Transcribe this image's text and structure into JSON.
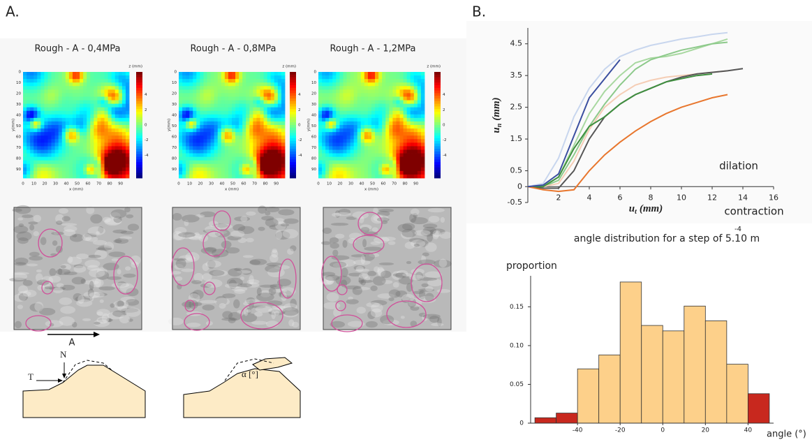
{
  "panel_labels": [
    "A.",
    "B."
  ],
  "heatmaps": {
    "titles": [
      "Rough - A - 0,4MPa",
      "Rough - A - 0,8MPa",
      "Rough - A - 1,2MPa"
    ],
    "xlabel": "x (mm)",
    "ylabel": "y(mm)",
    "zlabel": "z (mm)",
    "xticks": [
      0,
      10,
      20,
      30,
      40,
      50,
      60,
      70,
      80,
      90
    ],
    "yticks": [
      0,
      10,
      20,
      30,
      40,
      50,
      60,
      70,
      80,
      90
    ],
    "zticks": [
      4,
      2,
      0,
      -2,
      -4
    ]
  },
  "photo": {
    "arrow_label": "A"
  },
  "diagram": {
    "labels": [
      "T",
      "N",
      "α [°]"
    ]
  },
  "chart_data": [
    {
      "type": "line",
      "ylabel": {
        "main": "u",
        "sub": "n",
        "unit": "(mm)"
      },
      "xlabel": {
        "main": "u",
        "sub": "t",
        "unit": "(mm)"
      },
      "annotations": [
        "dilation",
        "contraction"
      ],
      "x": [
        0,
        1,
        2,
        3,
        4,
        5,
        6,
        7,
        8,
        9,
        10,
        11,
        12,
        13,
        14
      ],
      "series": [
        {
          "color": "#c8d6ee",
          "values": [
            0,
            0.1,
            0.9,
            2.2,
            3.1,
            3.7,
            4.1,
            4.3,
            4.45,
            4.55,
            4.65,
            4.72,
            4.8,
            4.85,
            null
          ]
        },
        {
          "color": "#a8d8a0",
          "values": [
            0,
            0.02,
            0.3,
            1.3,
            2.3,
            3.0,
            3.5,
            3.9,
            4.05,
            4.1,
            4.2,
            4.35,
            4.5,
            4.65,
            null
          ]
        },
        {
          "color": "#8cc98a",
          "values": [
            0,
            0,
            0.2,
            1.0,
            1.9,
            2.6,
            3.2,
            3.7,
            4.0,
            4.15,
            4.3,
            4.4,
            4.5,
            4.55,
            null
          ]
        },
        {
          "color": "#f5cdb5",
          "values": [
            0,
            0,
            0.1,
            0.8,
            1.8,
            2.5,
            2.9,
            3.2,
            3.35,
            3.45,
            3.5,
            3.55,
            3.6,
            3.65,
            null
          ]
        },
        {
          "color": "#555555",
          "values": [
            0,
            -0.05,
            -0.05,
            0.5,
            1.5,
            2.2,
            2.6,
            2.9,
            3.1,
            3.3,
            3.45,
            3.55,
            3.6,
            3.65,
            3.72
          ]
        },
        {
          "color": "#3f8f3f",
          "values": [
            0,
            0,
            0.3,
            1.2,
            1.9,
            2.2,
            2.6,
            2.9,
            3.1,
            3.3,
            3.4,
            3.5,
            3.55,
            null,
            null
          ]
        },
        {
          "color": "#e8762d",
          "values": [
            0,
            -0.1,
            -0.15,
            -0.1,
            0.5,
            1.0,
            1.4,
            1.75,
            2.05,
            2.3,
            2.5,
            2.65,
            2.8,
            2.9,
            null
          ]
        },
        {
          "color": "#3b4fa0",
          "values": [
            0,
            0.05,
            0.4,
            1.6,
            2.8,
            3.4,
            4.0,
            null,
            null,
            null,
            null,
            null,
            null,
            null,
            null
          ]
        }
      ],
      "xlim": [
        0,
        16
      ],
      "ylim": [
        -0.5,
        5
      ],
      "xticks": [
        2,
        4,
        6,
        8,
        10,
        12,
        14,
        16
      ],
      "yticks": [
        -0.5,
        0,
        0.5,
        1.5,
        2.5,
        3.5,
        4.5
      ]
    },
    {
      "type": "histogram",
      "title": "angle distribution for a step of 5.10 m",
      "title_superscript": "-4",
      "ylabel": "proportion",
      "xlabel": "angle (°)",
      "bins": [
        -60,
        -50,
        -40,
        -30,
        -20,
        -10,
        0,
        10,
        20,
        30,
        40,
        50
      ],
      "values": [
        0.007,
        0.013,
        0.07,
        0.088,
        0.182,
        0.126,
        0.119,
        0.151,
        0.132,
        0.076,
        0.038
      ],
      "colors": [
        "#c8281e",
        "#c8281e",
        "#fdd08a",
        "#fdd08a",
        "#fdd08a",
        "#fdd08a",
        "#fdd08a",
        "#fdd08a",
        "#fdd08a",
        "#fdd08a",
        "#c8281e"
      ],
      "xlim": [
        -62,
        52
      ],
      "ylim": [
        0,
        0.19
      ],
      "xticks": [
        -40,
        -20,
        0,
        20,
        40
      ],
      "yticks": [
        0,
        0.05,
        {
          "value": 0.1,
          "label": "0.10"
        },
        0.15
      ]
    }
  ]
}
